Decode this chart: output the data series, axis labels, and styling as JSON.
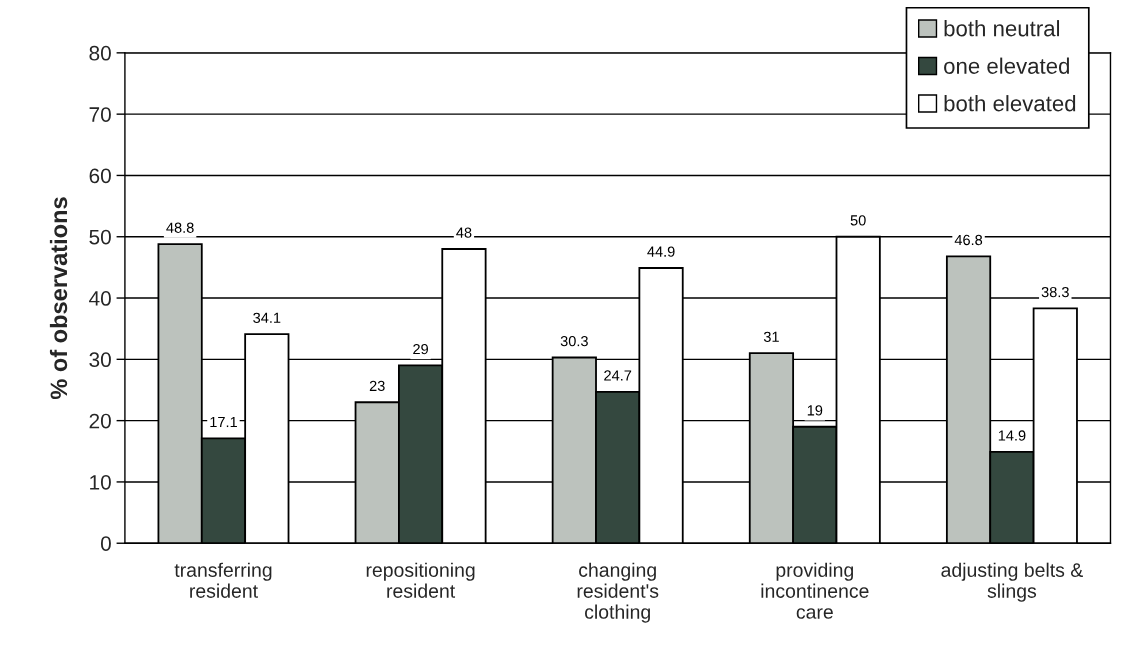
{
  "chart_data": {
    "type": "bar",
    "ylabel": "% of observations",
    "categories": [
      "transferring\nresident",
      "repositioning\nresident",
      "changing\nresident's\nclothing",
      "providing\nincontinence\ncare",
      "adjusting belts &\nslings"
    ],
    "series": [
      {
        "name": "both neutral",
        "color": "#bcc2bd",
        "values": [
          48.8,
          23,
          30.3,
          31,
          46.8
        ]
      },
      {
        "name": "one elevated",
        "color": "#34483f",
        "values": [
          17.1,
          29,
          24.7,
          19,
          14.9
        ]
      },
      {
        "name": "both elevated",
        "color": "#ffffff",
        "values": [
          34.1,
          48,
          44.9,
          50,
          38.3
        ]
      }
    ],
    "ylim": [
      0,
      80
    ],
    "yticks": [
      0,
      10,
      20,
      30,
      40,
      50,
      60,
      70,
      80
    ],
    "grid": "y",
    "legend": "top right",
    "data_labels": true
  }
}
